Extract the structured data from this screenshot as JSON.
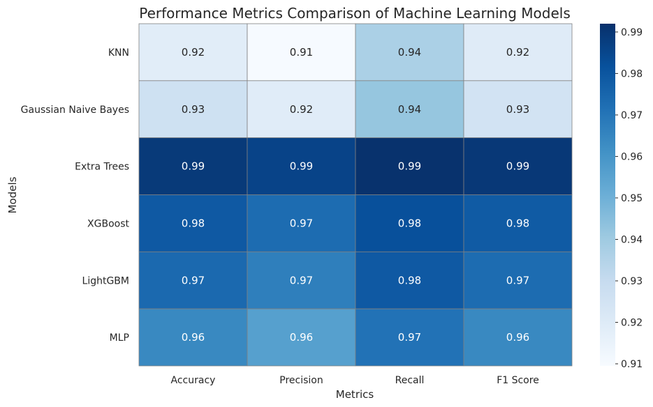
{
  "chart_data": {
    "type": "heatmap",
    "title": "Performance Metrics Comparison of Machine Learning Models",
    "xlabel": "Metrics",
    "ylabel": "Models",
    "x_categories": [
      "Accuracy",
      "Precision",
      "Recall",
      "F1 Score"
    ],
    "y_categories": [
      "KNN",
      "Gaussian Naive Bayes",
      "Extra Trees",
      "XGBoost",
      "LightGBM",
      "MLP"
    ],
    "values": [
      [
        0.9185,
        0.91,
        0.937,
        0.9195
      ],
      [
        0.9265,
        0.919,
        0.942,
        0.925
      ],
      [
        0.989,
        0.986,
        0.9915,
        0.9895
      ],
      [
        0.979,
        0.973,
        0.982,
        0.9785
      ],
      [
        0.974,
        0.967,
        0.979,
        0.973
      ],
      [
        0.964,
        0.956,
        0.971,
        0.964
      ]
    ],
    "labels": [
      [
        "0.92",
        "0.91",
        "0.94",
        "0.92"
      ],
      [
        "0.93",
        "0.92",
        "0.94",
        "0.93"
      ],
      [
        "0.99",
        "0.99",
        "0.99",
        "0.99"
      ],
      [
        "0.98",
        "0.97",
        "0.98",
        "0.98"
      ],
      [
        "0.97",
        "0.97",
        "0.98",
        "0.97"
      ],
      [
        "0.96",
        "0.96",
        "0.97",
        "0.96"
      ]
    ],
    "colormap": "Blues",
    "colorbar": {
      "min": 0.9095,
      "max": 0.992,
      "ticks": [
        0.91,
        0.92,
        0.93,
        0.94,
        0.95,
        0.96,
        0.97,
        0.98,
        0.99
      ],
      "tick_labels": [
        "0.91",
        "0.92",
        "0.93",
        "0.94",
        "0.95",
        "0.96",
        "0.97",
        "0.98",
        "0.99"
      ]
    },
    "grid": true,
    "cell_border_color": "#808080"
  }
}
